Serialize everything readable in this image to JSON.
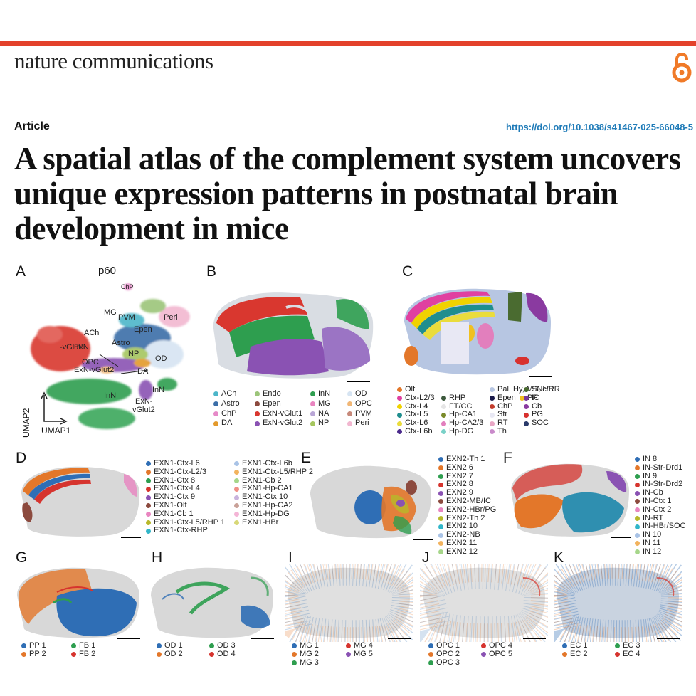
{
  "header": {
    "journal": "nature communications",
    "oa_icon": "open-access-icon",
    "accent_color": "#e3412b",
    "article_type": "Article",
    "doi": "https://doi.org/10.1038/s41467-025-66048-5"
  },
  "title": "A spatial atlas of the complement system uncovers unique expression patterns in postnatal brain development in mice",
  "figure": {
    "panels": {
      "A": {
        "letter": "A",
        "timepoint": "p60",
        "axis_y": "UMAP2",
        "axis_x": "UMAP1",
        "cluster_labels": [
          "ChP",
          "MG",
          "PVM",
          "Peri",
          "Epen",
          "ACh",
          "Astro",
          "ExN",
          "-vGlut1",
          "NP",
          "OD",
          "OPC",
          "ExN-vGlut2",
          "DA",
          "InN",
          "ExN-",
          "vGlut2",
          "InN"
        ]
      },
      "B": {
        "letter": "B",
        "legend": [
          {
            "label": "ACh",
            "color": "#4db6c9"
          },
          {
            "label": "Astro",
            "color": "#3b6ea8"
          },
          {
            "label": "ChP",
            "color": "#e68ac8"
          },
          {
            "label": "DA",
            "color": "#e39a2c"
          },
          {
            "label": "Endo",
            "color": "#9cc57a"
          },
          {
            "label": "Epen",
            "color": "#8c4a3e"
          },
          {
            "label": "ExN-vGlut1",
            "color": "#d9372f"
          },
          {
            "label": "ExN-vGlut2",
            "color": "#8a52b3"
          },
          {
            "label": "InN",
            "color": "#2e9e4f"
          },
          {
            "label": "MG",
            "color": "#e985c0"
          },
          {
            "label": "NA",
            "color": "#b9a6d6"
          },
          {
            "label": "NP",
            "color": "#a5c65e"
          },
          {
            "label": "OD",
            "color": "#d6e4f2"
          },
          {
            "label": "OPC",
            "color": "#f1b776"
          },
          {
            "label": "PVM",
            "color": "#c7897a"
          },
          {
            "label": "Peri",
            "color": "#f2b7d0"
          }
        ]
      },
      "C": {
        "letter": "C",
        "legend": [
          {
            "label": "Olf",
            "color": "#e3772a"
          },
          {
            "label": "Ctx-L2/3",
            "color": "#e040a0"
          },
          {
            "label": "Ctx-L4",
            "color": "#f0d200"
          },
          {
            "label": "Ctx-L5",
            "color": "#1f8e8e"
          },
          {
            "label": "Ctx-L6",
            "color": "#eadc3c"
          },
          {
            "label": "Ctx-L6b",
            "color": "#4b2a8c"
          },
          {
            "label": "RHP",
            "color": "#3d5a3d"
          },
          {
            "label": "FT/CC",
            "color": "#e5e5e5"
          },
          {
            "label": "Hp-CA1",
            "color": "#7a8a2a"
          },
          {
            "label": "Hp-CA2/3",
            "color": "#e27fbd"
          },
          {
            "label": "Hp-DG",
            "color": "#7ad1c8"
          },
          {
            "label": "Epen",
            "color": "#1a1a4a"
          },
          {
            "label": "ChP",
            "color": "#c23b2b"
          },
          {
            "label": "Str",
            "color": "#e8e8f4"
          },
          {
            "label": "RT",
            "color": "#e8a6c4"
          },
          {
            "label": "Th",
            "color": "#c98aca"
          },
          {
            "label": "PF",
            "color": "#f0c020"
          },
          {
            "label": "Pal, Hy, MB, HB",
            "color": "#b7c6e2"
          },
          {
            "label": "SNc/RR",
            "color": "#4a6b30"
          },
          {
            "label": "IC",
            "color": "#7a3a9a"
          },
          {
            "label": "Cb",
            "color": "#8a3aa0"
          },
          {
            "label": "PG",
            "color": "#d8312e"
          },
          {
            "label": "SOC",
            "color": "#2a3a6a"
          }
        ]
      },
      "D": {
        "letter": "D",
        "legend": [
          {
            "label": "EXN1-Ctx-L6",
            "color": "#2f6eb5"
          },
          {
            "label": "EXN1-Ctx-L2/3",
            "color": "#e3772a"
          },
          {
            "label": "EXN1-Ctx 8",
            "color": "#2e9e4f"
          },
          {
            "label": "EXN1-Ctx-L4",
            "color": "#d6342e"
          },
          {
            "label": "EXN1-Ctx 9",
            "color": "#8a52b3"
          },
          {
            "label": "EXN1-Olf",
            "color": "#8c4a3e"
          },
          {
            "label": "EXN1-Cb 1",
            "color": "#e985c0"
          },
          {
            "label": "EXN1-Ctx-L5/RHP 1",
            "color": "#b8b82a"
          },
          {
            "label": "EXN1-Ctx-RHP",
            "color": "#31b6c9"
          },
          {
            "label": "EXN1-Ctx-L6b",
            "color": "#a9c3e6"
          },
          {
            "label": "EXN1-Ctx-L5/RHP 2",
            "color": "#f2b35e"
          },
          {
            "label": "EXN1-Cb 2",
            "color": "#a6d68a"
          },
          {
            "label": "EXN1-Hp-CA1",
            "color": "#f08f86"
          },
          {
            "label": "EXN1-Ctx 10",
            "color": "#c9b3dd"
          },
          {
            "label": "EXN1-Hp-CA2",
            "color": "#c9a198"
          },
          {
            "label": "EXN1-Hp-DG",
            "color": "#f4b5d6"
          },
          {
            "label": "EXN1-HBr",
            "color": "#d8d878"
          }
        ]
      },
      "E": {
        "letter": "E",
        "legend": [
          {
            "label": "EXN2-Th 1",
            "color": "#2f6eb5"
          },
          {
            "label": "EXN2 6",
            "color": "#e3772a"
          },
          {
            "label": "EXN2 7",
            "color": "#2e9e4f"
          },
          {
            "label": "EXN2 8",
            "color": "#d6342e"
          },
          {
            "label": "EXN2 9",
            "color": "#8a52b3"
          },
          {
            "label": "EXN2-MB/IC",
            "color": "#8c4a3e"
          },
          {
            "label": "EXN2-HBr/PG",
            "color": "#e985c0"
          },
          {
            "label": "EXN2-Th 2",
            "color": "#b8b82a"
          },
          {
            "label": "EXN2 10",
            "color": "#31b6c9"
          },
          {
            "label": "EXN2-NB",
            "color": "#a9c3e6"
          },
          {
            "label": "EXN2 11",
            "color": "#f2b35e"
          },
          {
            "label": "EXN2 12",
            "color": "#a6d68a"
          }
        ]
      },
      "F": {
        "letter": "F",
        "legend": [
          {
            "label": "IN 8",
            "color": "#2f6eb5"
          },
          {
            "label": "IN-Str-Drd1",
            "color": "#e3772a"
          },
          {
            "label": "IN 9",
            "color": "#2e9e4f"
          },
          {
            "label": "IN-Str-Drd2",
            "color": "#d6342e"
          },
          {
            "label": "IN-Cb",
            "color": "#8a52b3"
          },
          {
            "label": "IN-Ctx 1",
            "color": "#8c4a3e"
          },
          {
            "label": "IN-Ctx 2",
            "color": "#e985c0"
          },
          {
            "label": "IN-RT",
            "color": "#b8b82a"
          },
          {
            "label": "IN-HBr/SOC",
            "color": "#31b6c9"
          },
          {
            "label": "IN 10",
            "color": "#a9c3e6"
          },
          {
            "label": "IN 11",
            "color": "#f2b35e"
          },
          {
            "label": "IN 12",
            "color": "#a6d68a"
          }
        ]
      },
      "G": {
        "letter": "G",
        "legend": [
          {
            "label": "PP 1",
            "color": "#2f6eb5"
          },
          {
            "label": "PP 2",
            "color": "#e3772a"
          },
          {
            "label": "FB 1",
            "color": "#2e9e4f"
          },
          {
            "label": "FB 2",
            "color": "#d6342e"
          }
        ]
      },
      "H": {
        "letter": "H",
        "legend": [
          {
            "label": "OD 1",
            "color": "#2f6eb5"
          },
          {
            "label": "OD 2",
            "color": "#e3772a"
          },
          {
            "label": "OD 3",
            "color": "#2e9e4f"
          },
          {
            "label": "OD 4",
            "color": "#d6342e"
          }
        ]
      },
      "I": {
        "letter": "I",
        "legend": [
          {
            "label": "MG 1",
            "color": "#2f6eb5"
          },
          {
            "label": "MG 2",
            "color": "#e3772a"
          },
          {
            "label": "MG 3",
            "color": "#2e9e4f"
          },
          {
            "label": "MG 4",
            "color": "#d6342e"
          },
          {
            "label": "MG 5",
            "color": "#8a52b3"
          }
        ]
      },
      "J": {
        "letter": "J",
        "legend": [
          {
            "label": "OPC 1",
            "color": "#2f6eb5"
          },
          {
            "label": "OPC 2",
            "color": "#e3772a"
          },
          {
            "label": "OPC 3",
            "color": "#2e9e4f"
          },
          {
            "label": "OPC 4",
            "color": "#d6342e"
          },
          {
            "label": "OPC 5",
            "color": "#8a52b3"
          }
        ]
      },
      "K": {
        "letter": "K",
        "legend": [
          {
            "label": "EC 1",
            "color": "#2f6eb5"
          },
          {
            "label": "EC 2",
            "color": "#e3772a"
          },
          {
            "label": "EC 3",
            "color": "#2e9e4f"
          },
          {
            "label": "EC 4",
            "color": "#d6342e"
          }
        ]
      }
    }
  }
}
